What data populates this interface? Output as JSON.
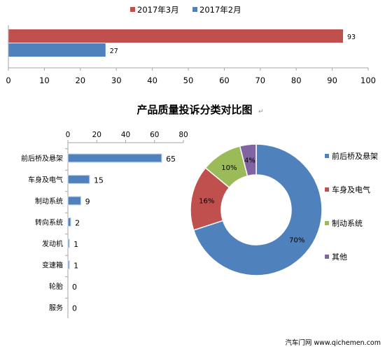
{
  "chart_data": [
    {
      "type": "bar",
      "orientation": "horizontal",
      "title": "",
      "series": [
        {
          "name": "2017年3月",
          "values": [
            93
          ]
        },
        {
          "name": "2017年2月",
          "values": [
            27
          ]
        }
      ],
      "xlim": [
        0,
        100
      ],
      "xticks": [
        "0",
        "10",
        "20",
        "30",
        "40",
        "50",
        "60",
        "70",
        "80",
        "90",
        "100"
      ],
      "legend": "top",
      "grid": false
    },
    {
      "type": "bar",
      "orientation": "horizontal",
      "categories": [
        "前后桥及悬架",
        "车身及电气",
        "制动系统",
        "转向系统",
        "发动机",
        "变速箱",
        "轮胎",
        "服务"
      ],
      "values": [
        65,
        15,
        9,
        2,
        1,
        1,
        0,
        0
      ],
      "xlim": [
        0,
        80
      ],
      "xticks": [
        "0",
        "20",
        "40",
        "60",
        "80"
      ],
      "grid": false
    },
    {
      "type": "pie",
      "title": "产品质量投诉分类对比图",
      "labels": [
        "前后桥及悬架",
        "车身及电气",
        "制动系统",
        "其他"
      ],
      "values": [
        70,
        16,
        10,
        4
      ],
      "value_labels": [
        "70%",
        "16%",
        "10%",
        "4%"
      ],
      "legend": "right"
    }
  ],
  "watermark": "汽车门网 www.qichemen.com",
  "colors": {
    "march": "#c0504d",
    "feb": "#4f81bd",
    "blue": "#4f81bd",
    "red": "#c0504d",
    "green": "#9bbb59",
    "purple": "#8064a2",
    "axis": "#a6a6a6",
    "text": "#404040"
  }
}
